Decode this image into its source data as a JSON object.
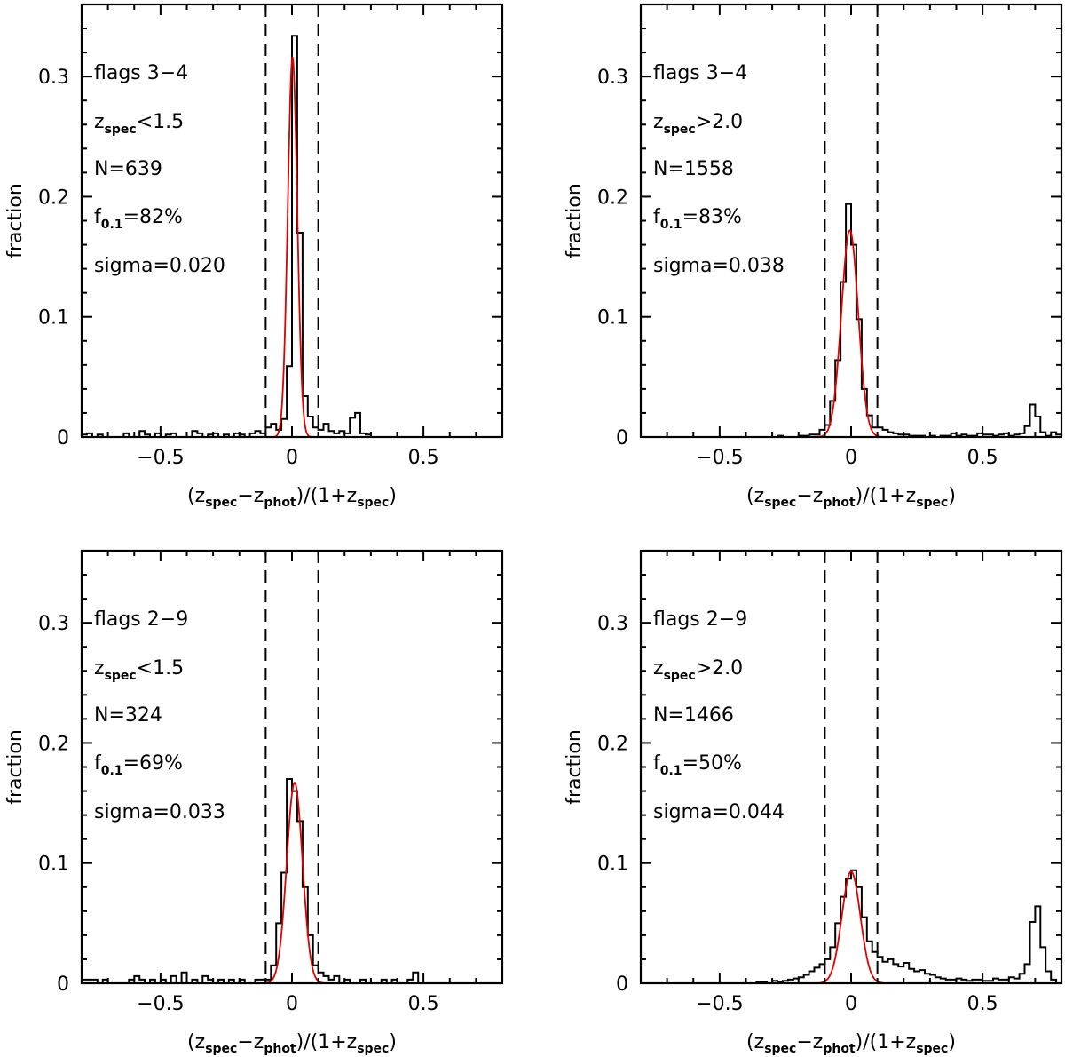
{
  "figure": {
    "ylabel": "fraction",
    "xlabel": {
      "lead": "(z",
      "spec": "spec",
      "minus": "−z",
      "phot": "phot",
      "mid": ")/(1+z",
      "tail": ")"
    },
    "x_tick_labels": [
      "−0.5",
      "0",
      "0.5"
    ],
    "y_tick_labels": [
      "0",
      "0.1",
      "0.2",
      "0.3"
    ]
  },
  "chart_data": [
    {
      "type": "histogram",
      "xlim": [
        -0.8,
        0.8
      ],
      "ylim": [
        0,
        0.36
      ],
      "x_ticks": [
        -0.5,
        0,
        0.5
      ],
      "y_ticks": [
        0,
        0.1,
        0.2,
        0.3
      ],
      "vlines": [
        -0.1,
        0.1
      ],
      "annotations": {
        "flags": "flags 3−4",
        "z_cut": "<1.5",
        "n": "N=639",
        "f01": "=82%",
        "sigma": "sigma=0.020"
      },
      "gaussian": {
        "mu": 0.002,
        "sigma": 0.018,
        "amp": 0.316
      },
      "bin_width": 0.02,
      "x": [
        -0.8,
        -0.78,
        -0.76,
        -0.74,
        -0.72,
        -0.7,
        -0.68,
        -0.66,
        -0.64,
        -0.62,
        -0.6,
        -0.58,
        -0.56,
        -0.54,
        -0.52,
        -0.5,
        -0.48,
        -0.46,
        -0.44,
        -0.42,
        -0.4,
        -0.38,
        -0.36,
        -0.34,
        -0.32,
        -0.3,
        -0.28,
        -0.26,
        -0.24,
        -0.22,
        -0.2,
        -0.18,
        -0.16,
        -0.14,
        -0.12,
        -0.1,
        -0.08,
        -0.06,
        -0.04,
        -0.02,
        0.0,
        0.02,
        0.04,
        0.06,
        0.08,
        0.1,
        0.12,
        0.14,
        0.16,
        0.18,
        0.2,
        0.22,
        0.24,
        0.26,
        0.28,
        0.3,
        0.32,
        0.34,
        0.36,
        0.38,
        0.4,
        0.42,
        0.44,
        0.46,
        0.48,
        0.5,
        0.52,
        0.54,
        0.56,
        0.58,
        0.6,
        0.62,
        0.64,
        0.66,
        0.68,
        0.7,
        0.72,
        0.74,
        0.76,
        0.78
      ],
      "values": [
        0.002,
        0.003,
        0.0,
        0.002,
        0.0,
        0.0,
        0.0,
        0.0,
        0.003,
        0.0,
        0.0,
        0.005,
        0.002,
        0.0,
        0.003,
        0.0,
        0.002,
        0.003,
        0.0,
        0.0,
        0.0,
        0.005,
        0.003,
        0.0,
        0.002,
        0.003,
        0.0,
        0.002,
        0.0,
        0.003,
        0.002,
        0.0,
        0.003,
        0.005,
        0.003,
        0.008,
        0.011,
        0.006,
        0.015,
        0.059,
        0.334,
        0.17,
        0.034,
        0.017,
        0.008,
        0.006,
        0.011,
        0.005,
        0.003,
        0.005,
        0.003,
        0.016,
        0.02,
        0.003,
        0.002,
        0.0,
        0.0,
        0.0,
        0.0,
        0.0,
        0.0,
        0.0,
        0.0,
        0.0,
        0.0,
        0.0,
        0.0,
        0.0,
        0.0,
        0.0,
        0.0,
        0.0,
        0.0,
        0.0,
        0.0,
        0.0,
        0.0,
        0.0,
        0.0,
        0.0
      ]
    },
    {
      "type": "histogram",
      "xlim": [
        -0.8,
        0.8
      ],
      "ylim": [
        0,
        0.36
      ],
      "x_ticks": [
        -0.5,
        0,
        0.5
      ],
      "y_ticks": [
        0,
        0.1,
        0.2,
        0.3
      ],
      "vlines": [
        -0.1,
        0.1
      ],
      "annotations": {
        "flags": "flags 3−4",
        "z_cut": ">2.0",
        "n": "N=1558",
        "f01": "=83%",
        "sigma": "sigma=0.038"
      },
      "gaussian": {
        "mu": -0.005,
        "sigma": 0.032,
        "amp": 0.172
      },
      "bin_width": 0.02,
      "x": [
        -0.8,
        -0.78,
        -0.76,
        -0.74,
        -0.72,
        -0.7,
        -0.68,
        -0.66,
        -0.64,
        -0.62,
        -0.6,
        -0.58,
        -0.56,
        -0.54,
        -0.52,
        -0.5,
        -0.48,
        -0.46,
        -0.44,
        -0.42,
        -0.4,
        -0.38,
        -0.36,
        -0.34,
        -0.32,
        -0.3,
        -0.28,
        -0.26,
        -0.24,
        -0.22,
        -0.2,
        -0.18,
        -0.16,
        -0.14,
        -0.12,
        -0.1,
        -0.08,
        -0.06,
        -0.04,
        -0.02,
        0.0,
        0.02,
        0.04,
        0.06,
        0.08,
        0.1,
        0.12,
        0.14,
        0.16,
        0.18,
        0.2,
        0.22,
        0.24,
        0.26,
        0.28,
        0.3,
        0.32,
        0.34,
        0.36,
        0.38,
        0.4,
        0.42,
        0.44,
        0.46,
        0.48,
        0.5,
        0.52,
        0.54,
        0.56,
        0.58,
        0.6,
        0.62,
        0.64,
        0.66,
        0.68,
        0.7,
        0.72,
        0.74,
        0.76,
        0.78
      ],
      "values": [
        0.0,
        0.0,
        0.0,
        0.0,
        0.0,
        0.0,
        0.0,
        0.0,
        0.0,
        0.0,
        0.0,
        0.0,
        0.0,
        0.0,
        0.0,
        0.0,
        0.0,
        0.0,
        0.0,
        0.0,
        0.0,
        0.0,
        0.0,
        0.0,
        0.0,
        0.0,
        0.001,
        0.0,
        0.0,
        0.0,
        0.001,
        0.001,
        0.002,
        0.002,
        0.006,
        0.01,
        0.03,
        0.064,
        0.129,
        0.194,
        0.16,
        0.098,
        0.04,
        0.018,
        0.008,
        0.008,
        0.006,
        0.004,
        0.003,
        0.002,
        0.002,
        0.001,
        0.001,
        0.001,
        0.0,
        0.001,
        0.0,
        0.001,
        0.001,
        0.003,
        0.001,
        0.002,
        0.001,
        0.001,
        0.003,
        0.002,
        0.002,
        0.001,
        0.002,
        0.003,
        0.001,
        0.002,
        0.003,
        0.009,
        0.027,
        0.017,
        0.004,
        0.001,
        0.004,
        0.002
      ]
    },
    {
      "type": "histogram",
      "xlim": [
        -0.8,
        0.8
      ],
      "ylim": [
        0,
        0.36
      ],
      "x_ticks": [
        -0.5,
        0,
        0.5
      ],
      "y_ticks": [
        0,
        0.1,
        0.2,
        0.3
      ],
      "vlines": [
        -0.1,
        0.1
      ],
      "annotations": {
        "flags": "flags 2−9",
        "z_cut": "<1.5",
        "n": "N=324",
        "f01": "=69%",
        "sigma": "sigma=0.033"
      },
      "gaussian": {
        "mu": 0.01,
        "sigma": 0.03,
        "amp": 0.167
      },
      "bin_width": 0.02,
      "x": [
        -0.8,
        -0.78,
        -0.76,
        -0.74,
        -0.72,
        -0.7,
        -0.68,
        -0.66,
        -0.64,
        -0.62,
        -0.6,
        -0.58,
        -0.56,
        -0.54,
        -0.52,
        -0.5,
        -0.48,
        -0.46,
        -0.44,
        -0.42,
        -0.4,
        -0.38,
        -0.36,
        -0.34,
        -0.32,
        -0.3,
        -0.28,
        -0.26,
        -0.24,
        -0.22,
        -0.2,
        -0.18,
        -0.16,
        -0.14,
        -0.12,
        -0.1,
        -0.08,
        -0.06,
        -0.04,
        -0.02,
        0.0,
        0.02,
        0.04,
        0.06,
        0.08,
        0.1,
        0.12,
        0.14,
        0.16,
        0.18,
        0.2,
        0.22,
        0.24,
        0.26,
        0.28,
        0.3,
        0.32,
        0.34,
        0.36,
        0.38,
        0.4,
        0.42,
        0.44,
        0.46,
        0.48,
        0.5,
        0.52,
        0.54,
        0.56,
        0.58,
        0.6,
        0.62,
        0.64,
        0.66,
        0.68,
        0.7,
        0.72,
        0.74,
        0.76,
        0.78
      ],
      "values": [
        0.003,
        0.003,
        0.003,
        0.0,
        0.003,
        0.0,
        0.0,
        0.0,
        0.0,
        0.003,
        0.006,
        0.003,
        0.0,
        0.003,
        0.0,
        0.003,
        0.0,
        0.006,
        0.0,
        0.009,
        0.0,
        0.003,
        0.0,
        0.006,
        0.003,
        0.0,
        0.003,
        0.0,
        0.003,
        0.0,
        0.003,
        0.0,
        0.0,
        0.003,
        0.003,
        0.003,
        0.015,
        0.05,
        0.092,
        0.17,
        0.16,
        0.135,
        0.08,
        0.04,
        0.015,
        0.009,
        0.006,
        0.003,
        0.006,
        0.0,
        0.003,
        0.0,
        0.0,
        0.003,
        0.0,
        0.0,
        0.0,
        0.003,
        0.0,
        0.003,
        0.0,
        0.0,
        0.003,
        0.009,
        0.0,
        0.0,
        0.0,
        0.0,
        0.0,
        0.0,
        0.0,
        0.0,
        0.0,
        0.0,
        0.0,
        0.0,
        0.0,
        0.0,
        0.0,
        0.0
      ]
    },
    {
      "type": "histogram",
      "xlim": [
        -0.8,
        0.8
      ],
      "ylim": [
        0,
        0.36
      ],
      "x_ticks": [
        -0.5,
        0,
        0.5
      ],
      "y_ticks": [
        0,
        0.1,
        0.2,
        0.3
      ],
      "vlines": [
        -0.1,
        0.1
      ],
      "annotations": {
        "flags": "flags 2−9",
        "z_cut": ">2.0",
        "n": "N=1466",
        "f01": "=50%",
        "sigma": "sigma=0.044"
      },
      "gaussian": {
        "mu": 0.0,
        "sigma": 0.035,
        "amp": 0.093
      },
      "bin_width": 0.02,
      "x": [
        -0.8,
        -0.78,
        -0.76,
        -0.74,
        -0.72,
        -0.7,
        -0.68,
        -0.66,
        -0.64,
        -0.62,
        -0.6,
        -0.58,
        -0.56,
        -0.54,
        -0.52,
        -0.5,
        -0.48,
        -0.46,
        -0.44,
        -0.42,
        -0.4,
        -0.38,
        -0.36,
        -0.34,
        -0.32,
        -0.3,
        -0.28,
        -0.26,
        -0.24,
        -0.22,
        -0.2,
        -0.18,
        -0.16,
        -0.14,
        -0.12,
        -0.1,
        -0.08,
        -0.06,
        -0.04,
        -0.02,
        0.0,
        0.02,
        0.04,
        0.06,
        0.08,
        0.1,
        0.12,
        0.14,
        0.16,
        0.18,
        0.2,
        0.22,
        0.24,
        0.26,
        0.28,
        0.3,
        0.32,
        0.34,
        0.36,
        0.38,
        0.4,
        0.42,
        0.44,
        0.46,
        0.48,
        0.5,
        0.52,
        0.54,
        0.56,
        0.58,
        0.6,
        0.62,
        0.64,
        0.66,
        0.68,
        0.7,
        0.72,
        0.74,
        0.76,
        0.78
      ],
      "values": [
        0.0,
        0.0,
        0.0,
        0.0,
        0.0,
        0.0,
        0.0,
        0.0,
        0.0,
        0.0,
        0.0,
        0.0,
        0.0,
        0.0,
        0.0,
        0.0,
        0.0,
        0.0,
        0.0,
        0.0,
        0.0,
        0.0,
        0.001,
        0.001,
        0.0,
        0.002,
        0.001,
        0.002,
        0.003,
        0.004,
        0.005,
        0.007,
        0.01,
        0.013,
        0.016,
        0.02,
        0.03,
        0.05,
        0.072,
        0.087,
        0.094,
        0.08,
        0.055,
        0.035,
        0.026,
        0.022,
        0.018,
        0.02,
        0.016,
        0.014,
        0.017,
        0.012,
        0.01,
        0.011,
        0.008,
        0.007,
        0.005,
        0.004,
        0.003,
        0.003,
        0.004,
        0.003,
        0.002,
        0.003,
        0.003,
        0.002,
        0.002,
        0.004,
        0.003,
        0.003,
        0.005,
        0.004,
        0.008,
        0.016,
        0.051,
        0.064,
        0.03,
        0.01,
        0.003,
        0.0
      ]
    }
  ]
}
